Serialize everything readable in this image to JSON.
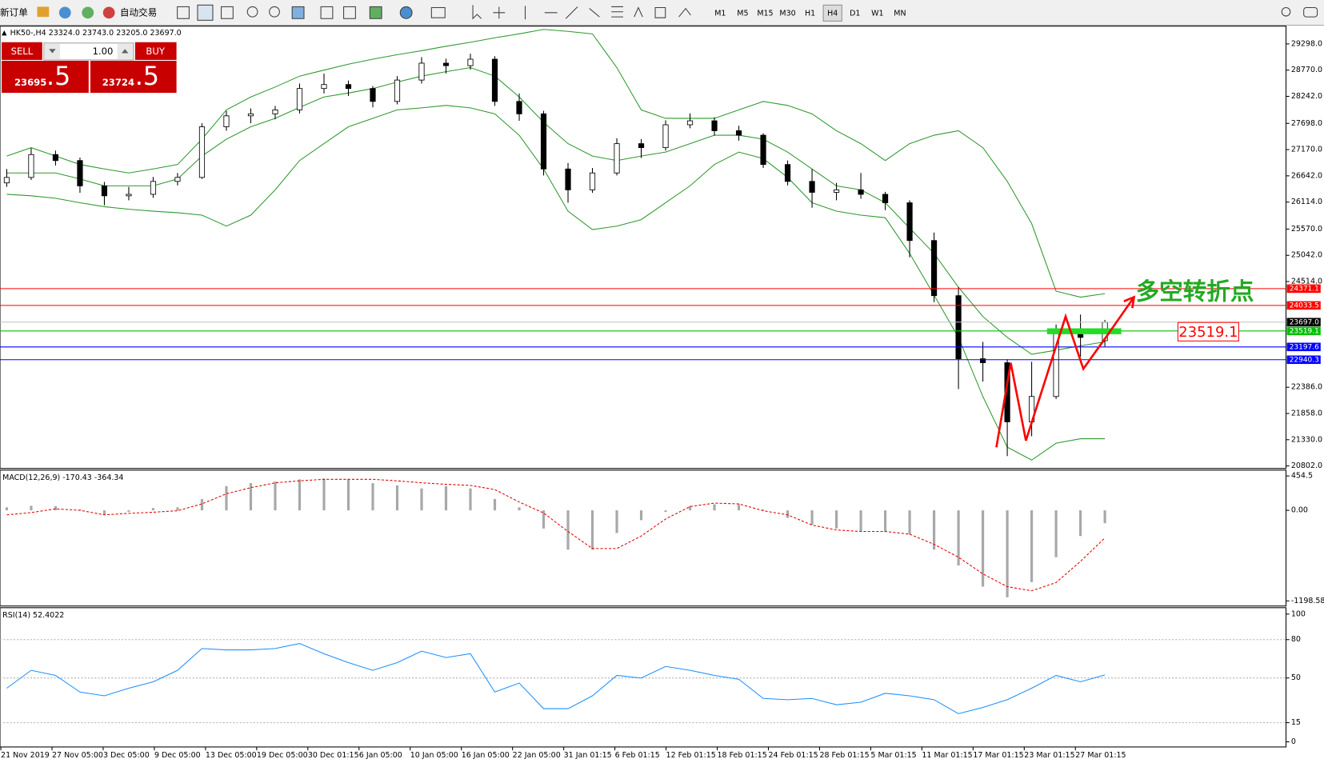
{
  "toolbar": {
    "new_order": "新订单",
    "auto_trading": "自动交易",
    "timeframes": [
      "M1",
      "M5",
      "M15",
      "M30",
      "H1",
      "H4",
      "D1",
      "W1",
      "MN"
    ],
    "active_timeframe": "H4"
  },
  "chart_header": {
    "symbol": "HK50-,H4",
    "ohlc": [
      "23324.0",
      "23743.0",
      "23205.0",
      "23697.0"
    ]
  },
  "trade_panel": {
    "sell": "SELL",
    "volume": "1.00",
    "buy": "BUY",
    "sell_price": "23695",
    "sell_pips": ".5",
    "buy_price": "23724",
    "buy_pips": ".5"
  },
  "annotations": {
    "turning_point": "多空转折点",
    "price_box": "23519.1"
  },
  "time_axis": [
    "21 Nov 2019",
    "27 Nov 05:00",
    "3 Dec 05:00",
    "9 Dec 05:00",
    "13 Dec 05:00",
    "19 Dec 05:00",
    "30 Dec 01:15",
    "6 Jan 05:00",
    "10 Jan 05:00",
    "16 Jan 05:00",
    "22 Jan 05:00",
    "31 Jan 01:15",
    "6 Feb 01:15",
    "12 Feb 01:15",
    "18 Feb 01:15",
    "24 Feb 01:15",
    "28 Feb 01:15",
    "5 Mar 01:15",
    "11 Mar 01:15",
    "17 Mar 01:15",
    "23 Mar 01:15",
    "27 Mar 01:15"
  ],
  "chart_data": [
    {
      "type": "candlestick",
      "open": [
        26500,
        26610,
        27070,
        26950,
        26440,
        26240,
        26270,
        26530,
        26610,
        27630,
        27850,
        27890,
        27970,
        28400,
        28480,
        28400,
        28140,
        28570,
        28910,
        28860,
        28990,
        28140,
        27890,
        26780,
        26360,
        26700,
        27290,
        27210,
        27670,
        27750,
        27550,
        27460,
        26870,
        26530,
        26310,
        26360,
        26270,
        26100,
        25340,
        24230,
        22960,
        22880,
        21690,
        22200,
        23470,
        23324
      ],
      "high": [
        26780,
        27200,
        27150,
        27010,
        26520,
        26420,
        26620,
        26700,
        27700,
        27950,
        28000,
        28050,
        28500,
        28700,
        28560,
        28450,
        28650,
        29030,
        29000,
        29100,
        29050,
        28300,
        27950,
        26900,
        26800,
        27400,
        27380,
        27760,
        27900,
        27820,
        27650,
        27500,
        26950,
        26780,
        26500,
        26700,
        26320,
        26150,
        25500,
        24400,
        23300,
        22950,
        22900,
        23650,
        23850,
        23743
      ],
      "low": [
        26420,
        26560,
        26850,
        26300,
        26050,
        26150,
        26200,
        26450,
        26580,
        27550,
        27700,
        27780,
        27900,
        28300,
        28250,
        28020,
        28080,
        28500,
        28700,
        28780,
        28050,
        27750,
        26650,
        26100,
        26300,
        26650,
        27000,
        27150,
        27600,
        27450,
        27350,
        26800,
        26450,
        26000,
        26150,
        26180,
        25950,
        25000,
        24100,
        22350,
        22500,
        21000,
        21400,
        22150,
        23000,
        23205
      ],
      "close": [
        26610,
        27070,
        26950,
        26440,
        26240,
        26270,
        26530,
        26610,
        27630,
        27850,
        27890,
        27970,
        28400,
        28480,
        28400,
        28140,
        28570,
        28910,
        28860,
        28990,
        28140,
        27890,
        26780,
        26360,
        26700,
        27290,
        27210,
        27670,
        27750,
        27550,
        27460,
        26870,
        26530,
        26310,
        26360,
        26270,
        26100,
        25340,
        24230,
        22960,
        22880,
        21690,
        22200,
        23470,
        23390,
        23697
      ],
      "bands": {
        "color": "#2e9a2e",
        "upper": [
          27040,
          27210,
          27040,
          26870,
          26780,
          26700,
          26780,
          26870,
          27380,
          27970,
          28230,
          28430,
          28650,
          28770,
          28890,
          28990,
          29080,
          29160,
          29250,
          29330,
          29420,
          29500,
          29590,
          29550,
          29500,
          28820,
          27970,
          27800,
          27800,
          27800,
          27970,
          28140,
          28060,
          27890,
          27550,
          27290,
          26950,
          27290,
          27460,
          27550,
          27210,
          26530,
          25680,
          24320,
          24200,
          24270
        ],
        "middle": [
          26700,
          26700,
          26700,
          26580,
          26440,
          26440,
          26440,
          26580,
          27040,
          27380,
          27630,
          27800,
          28020,
          28230,
          28310,
          28400,
          28530,
          28650,
          28740,
          28820,
          28650,
          28230,
          27720,
          27290,
          27040,
          26950,
          27040,
          27120,
          27290,
          27460,
          27460,
          27380,
          27120,
          26780,
          26440,
          26360,
          26100,
          25590,
          25080,
          24400,
          23810,
          23390,
          23050,
          23130,
          23220,
          23300
        ],
        "lower": [
          26270,
          26240,
          26190,
          26100,
          26020,
          25970,
          25930,
          25900,
          25850,
          25630,
          25850,
          26360,
          26950,
          27290,
          27630,
          27800,
          27970,
          28010,
          28060,
          28010,
          27890,
          27460,
          26780,
          25930,
          25560,
          25630,
          25760,
          26100,
          26440,
          26870,
          27120,
          26990,
          26610,
          26100,
          25930,
          25850,
          25800,
          25080,
          24240,
          23390,
          22200,
          21180,
          20920,
          21260,
          21350,
          21350
        ]
      },
      "ylim": [
        20752,
        29638
      ],
      "yticks": [
        {
          "value": 29298,
          "label": "29298.0"
        },
        {
          "value": 28770,
          "label": "28770.0"
        },
        {
          "value": 28242,
          "label": "28242.0"
        },
        {
          "value": 27698,
          "label": "27698.0"
        },
        {
          "value": 27170,
          "label": "27170.0"
        },
        {
          "value": 26642,
          "label": "26642.0"
        },
        {
          "value": 26114,
          "label": "26114.0"
        },
        {
          "value": 25570,
          "label": "25570.0"
        },
        {
          "value": 25042,
          "label": "25042.0"
        },
        {
          "value": 24514,
          "label": "24514.0"
        },
        {
          "value": 22386,
          "label": "22386.0"
        },
        {
          "value": 21858,
          "label": "21858.0"
        },
        {
          "value": 21330,
          "label": "21330.0"
        },
        {
          "value": 20802,
          "label": "20802.0"
        }
      ],
      "levels": [
        {
          "price": 24371.1,
          "color": "#ff0000"
        },
        {
          "price": 24033.5,
          "color": "#ff0000"
        },
        {
          "price": 23697,
          "label": "23697.0",
          "color": "#000000",
          "line_color": "#c0c0c0"
        },
        {
          "price": 23519.1,
          "color": "#00c000"
        },
        {
          "price": 23197.6,
          "color": "#0000ff"
        },
        {
          "price": 22940.3,
          "color": "#0000ff"
        }
      ]
    },
    {
      "type": "macd",
      "title": "MACD(12,26,9) -170.43 -364.34",
      "color": "#a8a8a8",
      "signal_color": "#e00000",
      "values": [
        40,
        60,
        55,
        10,
        -60,
        -20,
        30,
        40,
        150,
        320,
        360,
        380,
        410,
        420,
        410,
        360,
        330,
        290,
        320,
        290,
        150,
        40,
        -240,
        -520,
        -520,
        -300,
        -130,
        -20,
        60,
        80,
        80,
        10,
        -100,
        -190,
        -240,
        -280,
        -280,
        -320,
        -520,
        -730,
        -1010,
        -1150,
        -950,
        -620,
        -340,
        -170.43
      ],
      "signal": [
        -60,
        -30,
        20,
        0,
        -60,
        -40,
        -25,
        -5,
        85,
        220,
        300,
        365,
        390,
        410,
        410,
        410,
        390,
        365,
        345,
        330,
        275,
        110,
        -35,
        -280,
        -505,
        -505,
        -340,
        -115,
        50,
        95,
        85,
        -5,
        -60,
        -195,
        -260,
        -280,
        -280,
        -315,
        -450,
        -620,
        -840,
        -1010,
        -1065,
        -955,
        -675,
        -364.34
      ],
      "ylim": [
        -1266,
        521
      ],
      "yticks": [
        454.5,
        {
          "value": 0,
          "label": "0.00"
        },
        -1198.58
      ]
    },
    {
      "type": "line",
      "title": "RSI(14) 52.4022",
      "color": "#1e90ff",
      "values": [
        42,
        56,
        52,
        39,
        36,
        42,
        47,
        56,
        73,
        72,
        72,
        73,
        77,
        69,
        62,
        56,
        62,
        71,
        66,
        69,
        39,
        46,
        26,
        26,
        36,
        52,
        50,
        59,
        56,
        52,
        49,
        34,
        33,
        34,
        29,
        31,
        38,
        36,
        33,
        22,
        27,
        33,
        42,
        52,
        47,
        52.4022
      ],
      "ylim": [
        -4,
        105
      ],
      "yticks": [
        100,
        80,
        50,
        15,
        0
      ],
      "levels": [
        80,
        50,
        15
      ]
    }
  ]
}
